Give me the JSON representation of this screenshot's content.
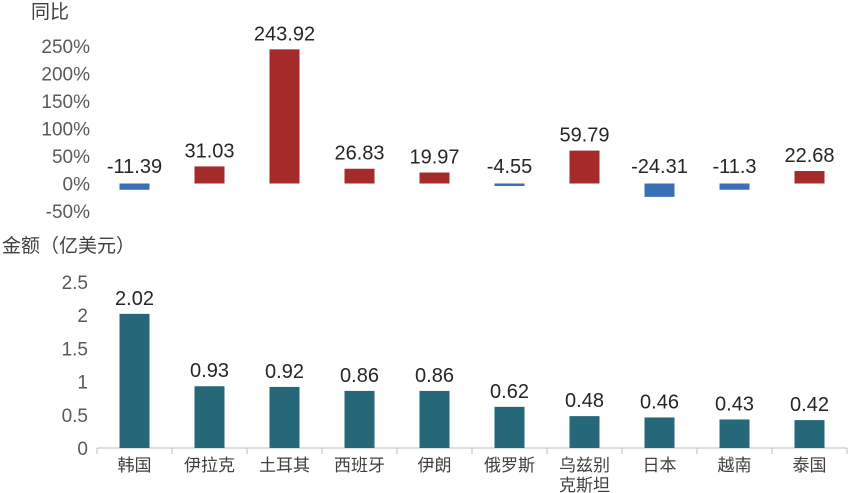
{
  "chart_data": [
    {
      "type": "bar",
      "ylabel": "同比",
      "categories": [
        "韩国",
        "伊拉克",
        "土耳其",
        "西班牙",
        "伊朗",
        "俄罗斯",
        "乌兹别克斯坦",
        "日本",
        "越南",
        "泰国"
      ],
      "values": [
        -11.39,
        31.03,
        243.92,
        26.83,
        19.97,
        -4.55,
        59.79,
        -24.31,
        -11.3,
        22.68
      ],
      "data_labels": [
        "-11.39",
        "31.03",
        "243.92",
        "26.83",
        "19.97",
        "-4.55",
        "59.79",
        "-24.31",
        "-11.3",
        "22.68"
      ],
      "ylim": [
        -50,
        250
      ],
      "yticks": [
        "250%",
        "200%",
        "150%",
        "100%",
        "50%",
        "0%",
        "-50%"
      ],
      "positive_color": "#a52a2a",
      "negative_color": "#3a6fb5",
      "grid": false
    },
    {
      "type": "bar",
      "ylabel": "金额（亿美元）",
      "categories": [
        "韩国",
        "伊拉克",
        "土耳其",
        "西班牙",
        "伊朗",
        "俄罗斯",
        "乌兹别克斯坦",
        "日本",
        "越南",
        "泰国"
      ],
      "category_lines": [
        [
          "韩国"
        ],
        [
          "伊拉克"
        ],
        [
          "土耳其"
        ],
        [
          "西班牙"
        ],
        [
          "伊朗"
        ],
        [
          "俄罗斯"
        ],
        [
          "乌兹别",
          "克斯坦"
        ],
        [
          "日本"
        ],
        [
          "越南"
        ],
        [
          "泰国"
        ]
      ],
      "values": [
        2.02,
        0.93,
        0.92,
        0.86,
        0.86,
        0.62,
        0.48,
        0.46,
        0.43,
        0.42
      ],
      "data_labels": [
        "2.02",
        "0.93",
        "0.92",
        "0.86",
        "0.86",
        "0.62",
        "0.48",
        "0.46",
        "0.43",
        "0.42"
      ],
      "ylim": [
        0,
        2.5
      ],
      "yticks": [
        "2.5",
        "2",
        "1.5",
        "1",
        "0.5",
        "0"
      ],
      "bar_color": "#27677a",
      "grid": false
    }
  ]
}
